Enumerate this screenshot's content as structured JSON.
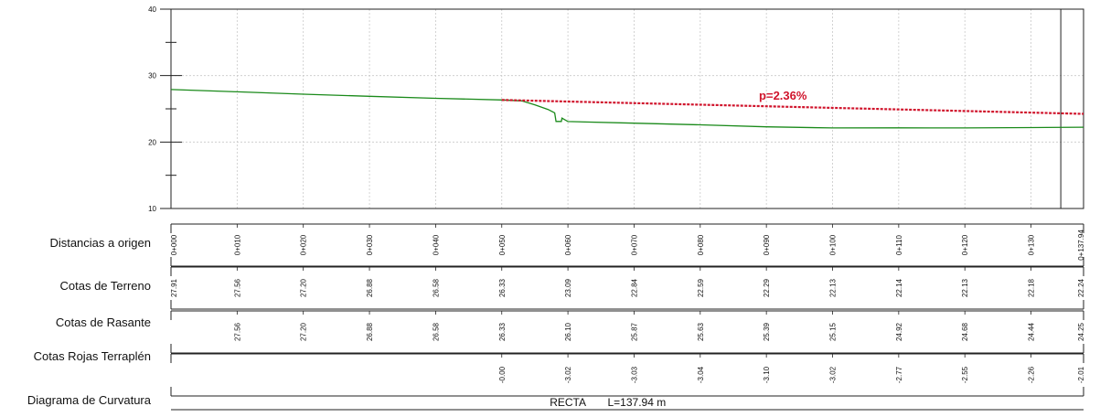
{
  "chart_data": {
    "type": "line",
    "y_axis": {
      "range": [
        10,
        40
      ],
      "major_ticks": [
        10,
        20,
        30,
        40
      ],
      "minor_ticks": [
        15,
        25,
        35
      ]
    },
    "x_range": [
      0,
      137.94
    ],
    "grid": true,
    "annotation": {
      "text": "p=2.36%",
      "color": "#d0142c"
    },
    "series": [
      {
        "color": "#1a8a1a",
        "points": [
          [
            0,
            27.91
          ],
          [
            10,
            27.56
          ],
          [
            20,
            27.2
          ],
          [
            30,
            26.88
          ],
          [
            40,
            26.58
          ],
          [
            50,
            26.33
          ],
          [
            53,
            26.2
          ],
          [
            55,
            25.6
          ],
          [
            57,
            24.9
          ],
          [
            58,
            24.4
          ],
          [
            58.2,
            23.1
          ],
          [
            59.0,
            23.1
          ],
          [
            59.1,
            23.6
          ],
          [
            60,
            23.09
          ],
          [
            70,
            22.84
          ],
          [
            80,
            22.59
          ],
          [
            90,
            22.29
          ],
          [
            100,
            22.13
          ],
          [
            110,
            22.14
          ],
          [
            120,
            22.13
          ],
          [
            130,
            22.18
          ],
          [
            137.94,
            22.24
          ]
        ]
      },
      {
        "color": "#d0142c",
        "style": "dashed",
        "points": [
          [
            50,
            26.33
          ],
          [
            137.94,
            24.25
          ]
        ]
      }
    ],
    "vertical_markers_x": [
      134.5,
      137.94
    ],
    "guitar": {
      "rows": [
        {
          "label": "Distancias a origen",
          "values": [
            "0+000",
            "0+010",
            "0+020",
            "0+030",
            "0+040",
            "0+050",
            "0+060",
            "0+070",
            "0+080",
            "0+090",
            "0+100",
            "0+110",
            "0+120",
            "0+130",
            "0+137.94"
          ]
        },
        {
          "label": "Cotas de Terreno",
          "values": [
            "27.91",
            "27.56",
            "27.20",
            "26.88",
            "26.58",
            "26.33",
            "23.09",
            "22.84",
            "22.59",
            "22.29",
            "22.13",
            "22.14",
            "22.13",
            "22.18",
            "22.24"
          ]
        },
        {
          "label": "Cotas de Rasante",
          "values": [
            "",
            "27.56",
            "27.20",
            "26.88",
            "26.58",
            "26.33",
            "26.10",
            "25.87",
            "25.63",
            "25.39",
            "25.15",
            "24.92",
            "24.68",
            "24.44",
            "24.25"
          ]
        },
        {
          "label": "Cotas Rojas Terraplén",
          "values": [
            "",
            "",
            "",
            "",
            "",
            "-0.00",
            "-3.02",
            "-3.03",
            "-3.04",
            "-3.10",
            "-3.02",
            "-2.77",
            "-2.55",
            "-2.26",
            "-2.01"
          ]
        }
      ],
      "stations": [
        0,
        10,
        20,
        30,
        40,
        50,
        60,
        70,
        80,
        90,
        100,
        110,
        120,
        130,
        137.94
      ],
      "curvature": {
        "label": "Diagrama de Curvatura",
        "text": "RECTA",
        "length": "L=137.94 m"
      }
    }
  }
}
